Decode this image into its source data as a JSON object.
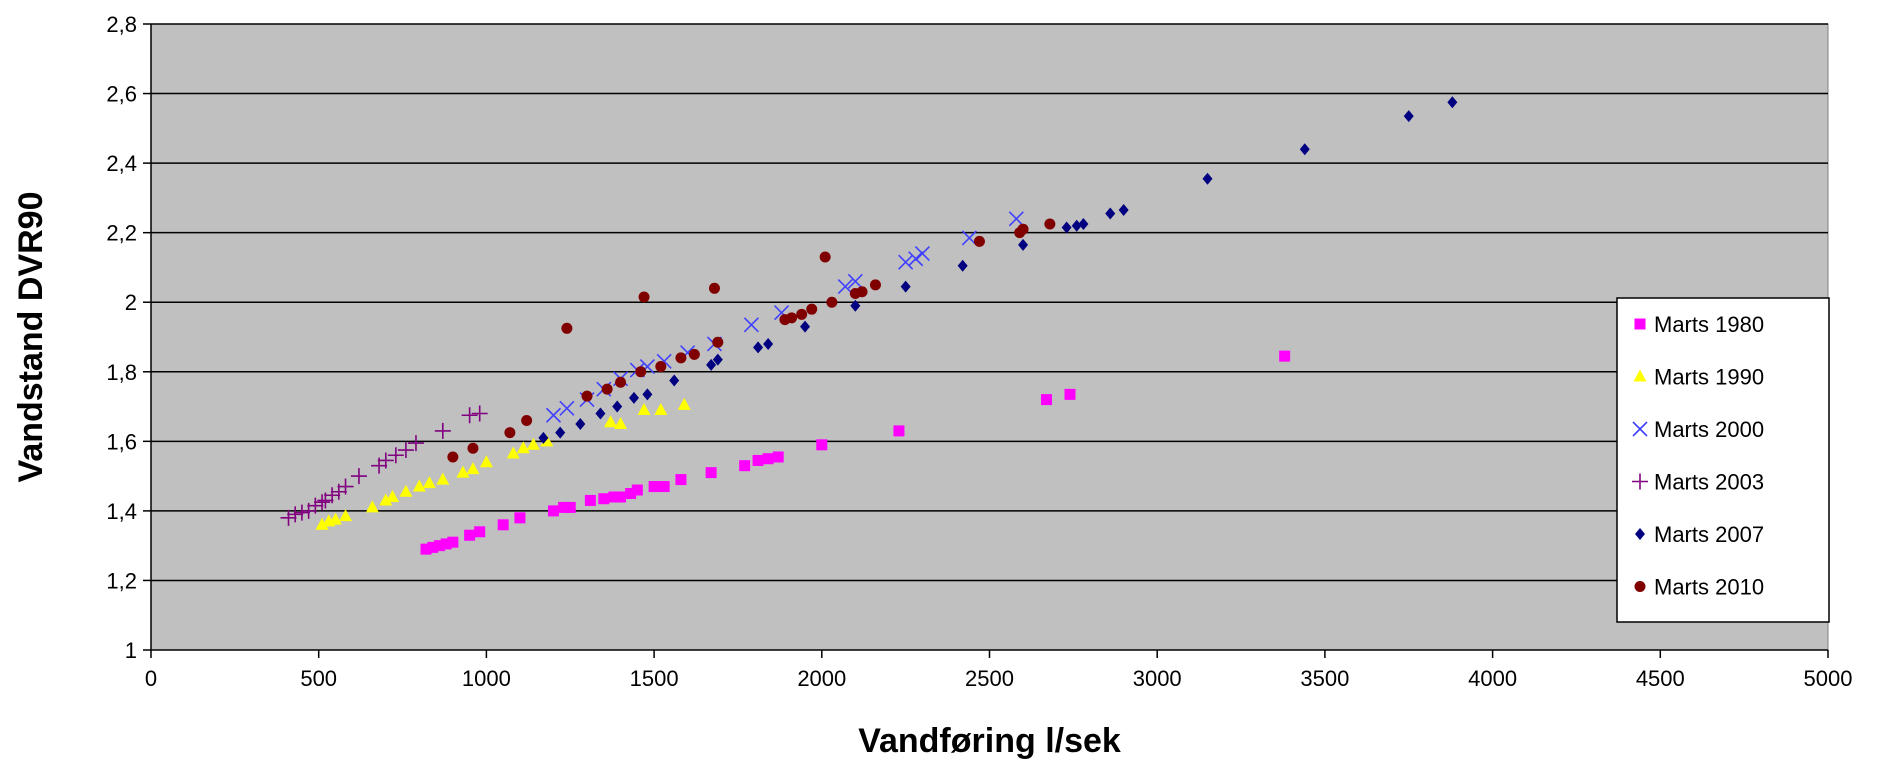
{
  "chart_data": {
    "type": "scatter",
    "title": "",
    "xlabel": "Vandføring l/sek",
    "ylabel": "Vandstand DVR90",
    "xlim": [
      0,
      5000
    ],
    "ylim": [
      1.0,
      2.8
    ],
    "x_ticks": [
      0,
      500,
      1000,
      1500,
      2000,
      2500,
      3000,
      3500,
      4000,
      4500,
      5000
    ],
    "y_ticks": [
      1.0,
      1.2,
      1.4,
      1.6,
      1.8,
      2.0,
      2.2,
      2.4,
      2.6,
      2.8
    ],
    "x_tick_labels": [
      "0",
      "500",
      "1000",
      "1500",
      "2000",
      "2500",
      "3000",
      "3500",
      "4000",
      "4500",
      "5000"
    ],
    "y_tick_labels": [
      "1",
      "1,2",
      "1,4",
      "1,6",
      "1,8",
      "2",
      "2,2",
      "2,4",
      "2,6",
      "2,8"
    ],
    "grid": {
      "horizontal": true,
      "vertical": false
    },
    "plot_background": "#c0c0c0",
    "legend_position": "right",
    "series": [
      {
        "name": "Marts 1980",
        "marker": "square",
        "color": "#ff00ff",
        "points": [
          [
            820,
            1.29
          ],
          [
            840,
            1.295
          ],
          [
            860,
            1.3
          ],
          [
            880,
            1.305
          ],
          [
            900,
            1.31
          ],
          [
            950,
            1.33
          ],
          [
            980,
            1.34
          ],
          [
            1050,
            1.36
          ],
          [
            1100,
            1.38
          ],
          [
            1200,
            1.4
          ],
          [
            1230,
            1.41
          ],
          [
            1250,
            1.41
          ],
          [
            1310,
            1.43
          ],
          [
            1350,
            1.435
          ],
          [
            1380,
            1.44
          ],
          [
            1400,
            1.44
          ],
          [
            1430,
            1.45
          ],
          [
            1450,
            1.46
          ],
          [
            1500,
            1.47
          ],
          [
            1530,
            1.47
          ],
          [
            1580,
            1.49
          ],
          [
            1670,
            1.51
          ],
          [
            1770,
            1.53
          ],
          [
            1810,
            1.545
          ],
          [
            1840,
            1.55
          ],
          [
            1870,
            1.555
          ],
          [
            2000,
            1.59
          ],
          [
            2230,
            1.63
          ],
          [
            2670,
            1.72
          ],
          [
            2740,
            1.735
          ],
          [
            3380,
            1.845
          ]
        ]
      },
      {
        "name": "Marts 1990",
        "marker": "triangle",
        "color": "#ffff00",
        "points": [
          [
            510,
            1.36
          ],
          [
            530,
            1.37
          ],
          [
            550,
            1.375
          ],
          [
            580,
            1.385
          ],
          [
            660,
            1.41
          ],
          [
            700,
            1.43
          ],
          [
            720,
            1.44
          ],
          [
            760,
            1.455
          ],
          [
            800,
            1.47
          ],
          [
            830,
            1.48
          ],
          [
            870,
            1.49
          ],
          [
            930,
            1.51
          ],
          [
            960,
            1.52
          ],
          [
            1000,
            1.54
          ],
          [
            1080,
            1.565
          ],
          [
            1110,
            1.58
          ],
          [
            1140,
            1.59
          ],
          [
            1180,
            1.6
          ],
          [
            1370,
            1.655
          ],
          [
            1400,
            1.65
          ],
          [
            1470,
            1.69
          ],
          [
            1520,
            1.69
          ],
          [
            1590,
            1.705
          ]
        ]
      },
      {
        "name": "Marts 2000",
        "marker": "x",
        "color": "#4040ff",
        "points": [
          [
            1200,
            1.675
          ],
          [
            1240,
            1.695
          ],
          [
            1300,
            1.72
          ],
          [
            1350,
            1.75
          ],
          [
            1400,
            1.78
          ],
          [
            1450,
            1.805
          ],
          [
            1480,
            1.815
          ],
          [
            1530,
            1.83
          ],
          [
            1600,
            1.855
          ],
          [
            1680,
            1.88
          ],
          [
            1790,
            1.935
          ],
          [
            1880,
            1.97
          ],
          [
            2070,
            2.045
          ],
          [
            2100,
            2.06
          ],
          [
            2250,
            2.115
          ],
          [
            2280,
            2.125
          ],
          [
            2300,
            2.14
          ],
          [
            2440,
            2.185
          ],
          [
            2580,
            2.24
          ]
        ]
      },
      {
        "name": "Marts 2003",
        "marker": "plus",
        "color": "#800080",
        "points": [
          [
            410,
            1.38
          ],
          [
            430,
            1.39
          ],
          [
            450,
            1.395
          ],
          [
            470,
            1.4
          ],
          [
            490,
            1.415
          ],
          [
            510,
            1.425
          ],
          [
            520,
            1.43
          ],
          [
            540,
            1.445
          ],
          [
            560,
            1.455
          ],
          [
            580,
            1.47
          ],
          [
            620,
            1.5
          ],
          [
            680,
            1.53
          ],
          [
            700,
            1.545
          ],
          [
            730,
            1.56
          ],
          [
            760,
            1.575
          ],
          [
            790,
            1.595
          ],
          [
            870,
            1.63
          ],
          [
            950,
            1.675
          ],
          [
            980,
            1.68
          ]
        ]
      },
      {
        "name": "Marts 2007",
        "marker": "diamond",
        "color": "#000080",
        "points": [
          [
            1170,
            1.61
          ],
          [
            1220,
            1.625
          ],
          [
            1280,
            1.65
          ],
          [
            1340,
            1.68
          ],
          [
            1390,
            1.7
          ],
          [
            1440,
            1.725
          ],
          [
            1480,
            1.735
          ],
          [
            1560,
            1.775
          ],
          [
            1670,
            1.82
          ],
          [
            1690,
            1.835
          ],
          [
            1810,
            1.87
          ],
          [
            1840,
            1.88
          ],
          [
            1950,
            1.93
          ],
          [
            2100,
            1.99
          ],
          [
            2250,
            2.045
          ],
          [
            2420,
            2.105
          ],
          [
            2600,
            2.165
          ],
          [
            2730,
            2.215
          ],
          [
            2760,
            2.22
          ],
          [
            2780,
            2.225
          ],
          [
            2860,
            2.255
          ],
          [
            2900,
            2.265
          ],
          [
            3150,
            2.355
          ],
          [
            3440,
            2.44
          ],
          [
            3750,
            2.535
          ],
          [
            3880,
            2.575
          ]
        ]
      },
      {
        "name": "Marts 2010",
        "marker": "circle",
        "color": "#800000",
        "points": [
          [
            900,
            1.555
          ],
          [
            960,
            1.58
          ],
          [
            1070,
            1.625
          ],
          [
            1120,
            1.66
          ],
          [
            1240,
            1.925
          ],
          [
            1300,
            1.73
          ],
          [
            1360,
            1.75
          ],
          [
            1400,
            1.77
          ],
          [
            1460,
            1.8
          ],
          [
            1470,
            2.015
          ],
          [
            1520,
            1.815
          ],
          [
            1580,
            1.84
          ],
          [
            1620,
            1.85
          ],
          [
            1680,
            2.04
          ],
          [
            1690,
            1.885
          ],
          [
            1890,
            1.95
          ],
          [
            1910,
            1.955
          ],
          [
            1940,
            1.965
          ],
          [
            1970,
            1.98
          ],
          [
            2010,
            2.13
          ],
          [
            2030,
            2.0
          ],
          [
            2100,
            2.025
          ],
          [
            2120,
            2.03
          ],
          [
            2160,
            2.05
          ],
          [
            2470,
            2.175
          ],
          [
            2590,
            2.2
          ],
          [
            2600,
            2.21
          ],
          [
            2680,
            2.225
          ]
        ]
      }
    ]
  }
}
